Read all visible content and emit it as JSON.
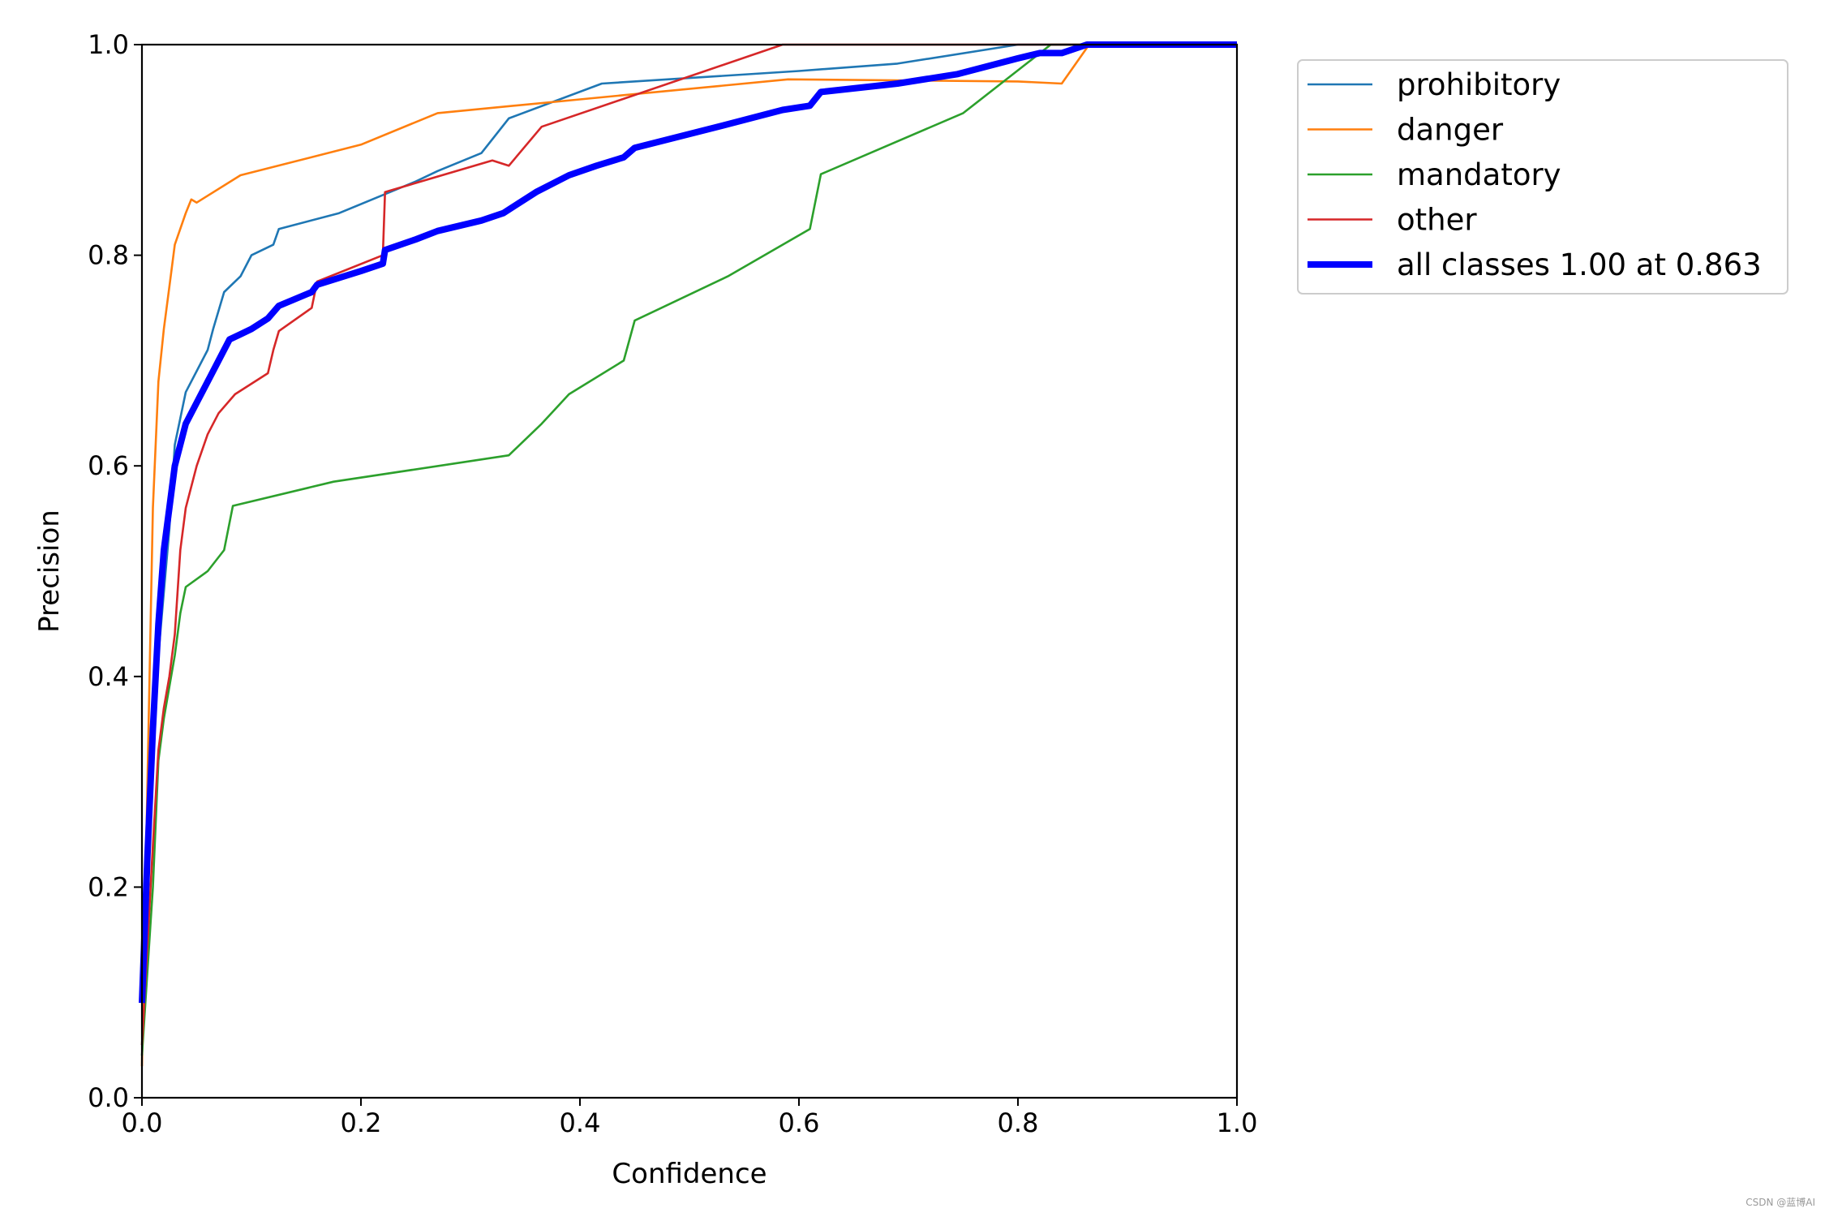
{
  "chart_data": {
    "type": "line",
    "xlabel": "Confidence",
    "ylabel": "Precision",
    "xlim": [
      0,
      1
    ],
    "ylim": [
      0,
      1
    ],
    "xticks": [
      "0.0",
      "0.2",
      "0.4",
      "0.6",
      "0.8",
      "1.0"
    ],
    "yticks": [
      "0.0",
      "0.2",
      "0.4",
      "0.6",
      "0.8",
      "1.0"
    ],
    "grid": false,
    "legend_position": "outside-top-right",
    "series": [
      {
        "name": "prohibitory",
        "color": "#1f77b4",
        "width": "thin",
        "points": [
          [
            0.0,
            0.1
          ],
          [
            0.005,
            0.25
          ],
          [
            0.01,
            0.35
          ],
          [
            0.015,
            0.42
          ],
          [
            0.02,
            0.48
          ],
          [
            0.025,
            0.54
          ],
          [
            0.03,
            0.62
          ],
          [
            0.04,
            0.67
          ],
          [
            0.05,
            0.69
          ],
          [
            0.06,
            0.71
          ],
          [
            0.065,
            0.73
          ],
          [
            0.075,
            0.765
          ],
          [
            0.09,
            0.78
          ],
          [
            0.1,
            0.8
          ],
          [
            0.12,
            0.81
          ],
          [
            0.125,
            0.825
          ],
          [
            0.18,
            0.84
          ],
          [
            0.25,
            0.87
          ],
          [
            0.27,
            0.88
          ],
          [
            0.31,
            0.897
          ],
          [
            0.335,
            0.93
          ],
          [
            0.42,
            0.963
          ],
          [
            0.6,
            0.975
          ],
          [
            0.69,
            0.982
          ],
          [
            0.8,
            1.0
          ],
          [
            1.0,
            1.0
          ]
        ]
      },
      {
        "name": "danger",
        "color": "#ff7f0e",
        "width": "thin",
        "points": [
          [
            0.0,
            0.03
          ],
          [
            0.005,
            0.3
          ],
          [
            0.01,
            0.56
          ],
          [
            0.015,
            0.68
          ],
          [
            0.02,
            0.73
          ],
          [
            0.025,
            0.77
          ],
          [
            0.03,
            0.81
          ],
          [
            0.04,
            0.84
          ],
          [
            0.045,
            0.853
          ],
          [
            0.05,
            0.85
          ],
          [
            0.09,
            0.876
          ],
          [
            0.2,
            0.905
          ],
          [
            0.27,
            0.935
          ],
          [
            0.4,
            0.948
          ],
          [
            0.59,
            0.967
          ],
          [
            0.8,
            0.965
          ],
          [
            0.84,
            0.963
          ],
          [
            0.865,
            1.0
          ],
          [
            1.0,
            1.0
          ]
        ]
      },
      {
        "name": "mandatory",
        "color": "#2ca02c",
        "width": "thin",
        "points": [
          [
            0.0,
            0.04
          ],
          [
            0.01,
            0.2
          ],
          [
            0.015,
            0.32
          ],
          [
            0.02,
            0.36
          ],
          [
            0.03,
            0.42
          ],
          [
            0.035,
            0.46
          ],
          [
            0.04,
            0.485
          ],
          [
            0.06,
            0.5
          ],
          [
            0.075,
            0.52
          ],
          [
            0.083,
            0.562
          ],
          [
            0.175,
            0.585
          ],
          [
            0.335,
            0.61
          ],
          [
            0.365,
            0.64
          ],
          [
            0.39,
            0.668
          ],
          [
            0.44,
            0.7
          ],
          [
            0.45,
            0.738
          ],
          [
            0.535,
            0.78
          ],
          [
            0.61,
            0.825
          ],
          [
            0.62,
            0.877
          ],
          [
            0.75,
            0.935
          ],
          [
            0.83,
            1.0
          ],
          [
            1.0,
            1.0
          ]
        ]
      },
      {
        "name": "other",
        "color": "#d62728",
        "width": "thin",
        "points": [
          [
            0.0,
            0.05
          ],
          [
            0.01,
            0.24
          ],
          [
            0.015,
            0.33
          ],
          [
            0.02,
            0.37
          ],
          [
            0.025,
            0.4
          ],
          [
            0.03,
            0.44
          ],
          [
            0.035,
            0.52
          ],
          [
            0.04,
            0.56
          ],
          [
            0.05,
            0.6
          ],
          [
            0.06,
            0.63
          ],
          [
            0.07,
            0.65
          ],
          [
            0.085,
            0.668
          ],
          [
            0.115,
            0.688
          ],
          [
            0.12,
            0.71
          ],
          [
            0.125,
            0.728
          ],
          [
            0.155,
            0.75
          ],
          [
            0.16,
            0.775
          ],
          [
            0.22,
            0.8
          ],
          [
            0.222,
            0.86
          ],
          [
            0.32,
            0.89
          ],
          [
            0.335,
            0.885
          ],
          [
            0.365,
            0.922
          ],
          [
            0.585,
            1.0
          ],
          [
            1.0,
            1.0
          ]
        ]
      },
      {
        "name": "all classes 1.00 at 0.863",
        "color": "#0000ff",
        "width": "thick",
        "points": [
          [
            0.0,
            0.09
          ],
          [
            0.005,
            0.23
          ],
          [
            0.01,
            0.35
          ],
          [
            0.015,
            0.45
          ],
          [
            0.02,
            0.52
          ],
          [
            0.025,
            0.56
          ],
          [
            0.03,
            0.6
          ],
          [
            0.04,
            0.64
          ],
          [
            0.05,
            0.66
          ],
          [
            0.06,
            0.68
          ],
          [
            0.07,
            0.7
          ],
          [
            0.08,
            0.72
          ],
          [
            0.09,
            0.725
          ],
          [
            0.1,
            0.73
          ],
          [
            0.115,
            0.74
          ],
          [
            0.125,
            0.752
          ],
          [
            0.155,
            0.765
          ],
          [
            0.16,
            0.772
          ],
          [
            0.2,
            0.785
          ],
          [
            0.22,
            0.792
          ],
          [
            0.222,
            0.805
          ],
          [
            0.25,
            0.815
          ],
          [
            0.27,
            0.823
          ],
          [
            0.31,
            0.833
          ],
          [
            0.33,
            0.84
          ],
          [
            0.36,
            0.86
          ],
          [
            0.39,
            0.876
          ],
          [
            0.415,
            0.885
          ],
          [
            0.44,
            0.893
          ],
          [
            0.45,
            0.902
          ],
          [
            0.53,
            0.923
          ],
          [
            0.585,
            0.938
          ],
          [
            0.61,
            0.942
          ],
          [
            0.62,
            0.955
          ],
          [
            0.69,
            0.963
          ],
          [
            0.745,
            0.972
          ],
          [
            0.8,
            0.987
          ],
          [
            0.82,
            0.992
          ],
          [
            0.84,
            0.992
          ],
          [
            0.863,
            1.0
          ],
          [
            1.0,
            1.0
          ]
        ]
      }
    ]
  }
}
